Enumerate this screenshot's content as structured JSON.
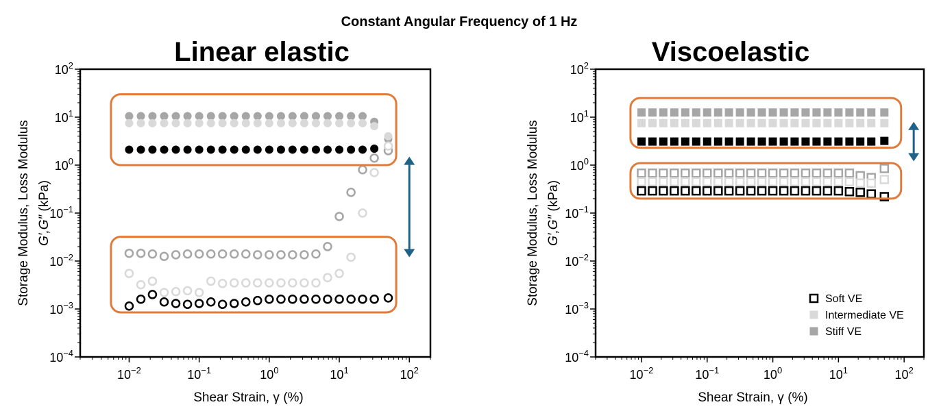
{
  "figure": {
    "title": "Constant Angular Frequency of 1 Hz",
    "colors": {
      "soft": "#000000",
      "intermediate": "#d9d9d9",
      "stiff": "#a6a6a6",
      "highlight_box": "#e07b3b",
      "arrow": "#1f6287",
      "axes": "#000000"
    },
    "legend": {
      "entries": [
        {
          "label": "Soft VE",
          "color": "#000000"
        },
        {
          "label": "Intermediate VE",
          "color": "#d9d9d9"
        },
        {
          "label": "Stiff VE",
          "color": "#a6a6a6"
        }
      ],
      "placement": "lower-right of right panel",
      "marker": "square"
    }
  },
  "chart_data": [
    {
      "type": "scatter",
      "title": "Linear elastic",
      "xlabel": "Shear Strain, γ (%)",
      "ylabel_line1": "Storage Modulus, Loss Modulus",
      "ylabel_line2_symbol": "G′,G″",
      "ylabel_line2_unit": "(kPa)",
      "xscale": "log",
      "yscale": "log",
      "xlim": [
        0.002,
        200
      ],
      "ylim": [
        0.0001,
        100
      ],
      "xticks": [
        "10−2",
        "10−1",
        "100",
        "101",
        "102"
      ],
      "yticks": [
        "10−4",
        "10−3",
        "10−2",
        "10−1",
        "100",
        "101",
        "102"
      ],
      "marker": "circle",
      "grid": false,
      "x": [
        0.01,
        0.0147,
        0.0215,
        0.0316,
        0.0464,
        0.0681,
        0.1,
        0.147,
        0.215,
        0.316,
        0.464,
        0.681,
        1.0,
        1.47,
        2.15,
        3.16,
        4.64,
        6.81,
        10.0,
        14.7,
        21.5,
        31.6,
        50.0
      ],
      "series": [
        {
          "group": "storage",
          "color_key": "stiff",
          "filled": true,
          "values": [
            10.5,
            10.5,
            10.5,
            10.5,
            10.5,
            10.5,
            10.5,
            10.5,
            10.5,
            10.5,
            10.5,
            10.5,
            10.5,
            10.5,
            10.5,
            10.5,
            10.5,
            10.5,
            10.5,
            10.5,
            10.5,
            8.0,
            3.5
          ]
        },
        {
          "group": "storage",
          "color_key": "intermediate",
          "filled": true,
          "values": [
            7.5,
            7.5,
            7.5,
            7.5,
            7.5,
            7.5,
            7.5,
            7.5,
            7.5,
            7.5,
            7.5,
            7.5,
            7.5,
            7.5,
            7.5,
            7.5,
            7.5,
            7.5,
            7.5,
            7.5,
            7.5,
            6.5,
            4.0
          ]
        },
        {
          "group": "storage",
          "color_key": "soft",
          "filled": true,
          "values": [
            2.1,
            2.1,
            2.1,
            2.1,
            2.1,
            2.1,
            2.1,
            2.1,
            2.1,
            2.1,
            2.1,
            2.1,
            2.1,
            2.1,
            2.1,
            2.1,
            2.1,
            2.1,
            2.1,
            2.1,
            2.1,
            2.2,
            2.3
          ]
        },
        {
          "group": "loss",
          "color_key": "stiff",
          "filled": false,
          "values": [
            0.0145,
            0.0145,
            0.014,
            0.0125,
            0.0135,
            0.014,
            0.014,
            0.014,
            0.014,
            0.014,
            0.014,
            0.0135,
            0.0135,
            0.0135,
            0.0135,
            0.0135,
            0.014,
            0.02,
            0.085,
            0.27,
            0.8,
            1.4,
            2.0
          ]
        },
        {
          "group": "loss",
          "color_key": "intermediate",
          "filled": false,
          "values": [
            0.0055,
            0.0032,
            0.0038,
            0.0022,
            0.0023,
            0.0024,
            0.0022,
            0.0038,
            0.0034,
            0.0035,
            0.0035,
            0.0035,
            0.0035,
            0.0035,
            0.0035,
            0.0035,
            0.0035,
            0.0045,
            0.0055,
            0.012,
            0.1,
            0.7,
            2.5
          ]
        },
        {
          "group": "loss",
          "color_key": "soft",
          "filled": false,
          "values": [
            0.00115,
            0.0016,
            0.002,
            0.0014,
            0.0013,
            0.00125,
            0.0013,
            0.0014,
            0.00125,
            0.0013,
            0.0014,
            0.0015,
            0.0016,
            0.0016,
            0.0016,
            0.0016,
            0.0016,
            0.0016,
            0.0016,
            0.0016,
            0.0016,
            0.0016,
            0.0017
          ]
        }
      ],
      "highlight_boxes": [
        {
          "x_range": [
            0.0055,
            65
          ],
          "y_range": [
            1.0,
            30
          ]
        },
        {
          "x_range": [
            0.0055,
            65
          ],
          "y_range": [
            0.00085,
            0.032
          ]
        }
      ],
      "double_arrow": {
        "x": 100,
        "y_range": [
          0.012,
          1.5
        ]
      }
    },
    {
      "type": "scatter",
      "title": "Viscoelastic",
      "xlabel": "Shear Strain, γ (%)",
      "ylabel_line1": "Storage Modulus, Loss Modulus",
      "ylabel_line2_symbol": "G′,G″",
      "ylabel_line2_unit": "(kPa)",
      "xscale": "log",
      "yscale": "log",
      "xlim": [
        0.002,
        200
      ],
      "ylim": [
        0.0001,
        100
      ],
      "xticks": [
        "10−2",
        "10−1",
        "100",
        "101",
        "102"
      ],
      "yticks": [
        "10−4",
        "10−3",
        "10−2",
        "10−1",
        "100",
        "101",
        "102"
      ],
      "marker": "square",
      "grid": false,
      "x": [
        0.01,
        0.0147,
        0.0215,
        0.0316,
        0.0464,
        0.0681,
        0.1,
        0.147,
        0.215,
        0.316,
        0.464,
        0.681,
        1.0,
        1.47,
        2.15,
        3.16,
        4.64,
        6.81,
        10.0,
        14.7,
        21.5,
        31.6,
        50.0
      ],
      "series": [
        {
          "group": "storage",
          "color_key": "stiff",
          "filled": true,
          "values": [
            12.5,
            12.5,
            12.5,
            12.5,
            12.5,
            12.5,
            12.5,
            12.5,
            12.5,
            12.5,
            12.5,
            12.5,
            12.5,
            12.5,
            12.5,
            12.5,
            12.5,
            12.5,
            12.5,
            12.5,
            12.5,
            12.5,
            12.5
          ]
        },
        {
          "group": "storage",
          "color_key": "intermediate",
          "filled": true,
          "values": [
            7.5,
            7.5,
            7.5,
            7.5,
            7.5,
            7.5,
            7.5,
            7.5,
            7.5,
            7.5,
            7.5,
            7.5,
            7.5,
            7.5,
            7.5,
            7.5,
            7.5,
            7.5,
            7.5,
            7.5,
            7.5,
            7.5,
            7.5
          ]
        },
        {
          "group": "storage",
          "color_key": "soft",
          "filled": true,
          "values": [
            3.1,
            3.1,
            3.1,
            3.1,
            3.1,
            3.1,
            3.1,
            3.1,
            3.1,
            3.1,
            3.1,
            3.1,
            3.1,
            3.1,
            3.1,
            3.1,
            3.1,
            3.1,
            3.1,
            3.1,
            3.1,
            3.1,
            3.2
          ]
        },
        {
          "group": "loss",
          "color_key": "stiff",
          "filled": false,
          "values": [
            0.68,
            0.68,
            0.68,
            0.68,
            0.68,
            0.68,
            0.68,
            0.68,
            0.68,
            0.68,
            0.68,
            0.68,
            0.68,
            0.68,
            0.68,
            0.68,
            0.68,
            0.68,
            0.68,
            0.68,
            0.6,
            0.55,
            0.85
          ]
        },
        {
          "group": "loss",
          "color_key": "intermediate",
          "filled": false,
          "values": [
            0.45,
            0.45,
            0.45,
            0.45,
            0.45,
            0.45,
            0.45,
            0.45,
            0.45,
            0.45,
            0.45,
            0.45,
            0.45,
            0.45,
            0.45,
            0.45,
            0.45,
            0.45,
            0.45,
            0.45,
            0.42,
            0.42,
            0.5
          ]
        },
        {
          "group": "loss",
          "color_key": "soft",
          "filled": false,
          "values": [
            0.29,
            0.29,
            0.29,
            0.29,
            0.29,
            0.29,
            0.29,
            0.29,
            0.29,
            0.29,
            0.29,
            0.29,
            0.29,
            0.29,
            0.29,
            0.29,
            0.29,
            0.29,
            0.29,
            0.28,
            0.27,
            0.25,
            0.22
          ]
        }
      ],
      "highlight_boxes": [
        {
          "x_range": [
            0.0068,
            90
          ],
          "y_range": [
            2.3,
            25
          ]
        },
        {
          "x_range": [
            0.0068,
            90
          ],
          "y_range": [
            0.2,
            1.1
          ]
        }
      ],
      "double_arrow": {
        "x": 140,
        "y_range": [
          1.2,
          8
        ]
      }
    }
  ]
}
